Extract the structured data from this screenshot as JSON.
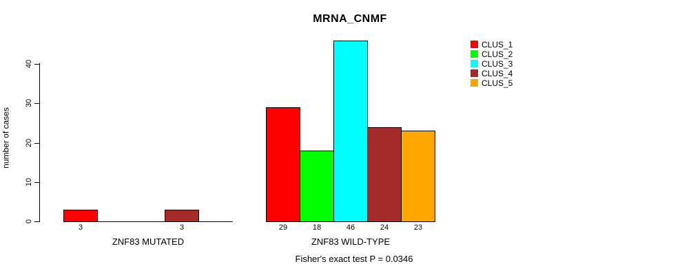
{
  "chart_data": {
    "type": "bar",
    "title": "MRNA_CNMF",
    "ylabel": "number of cases",
    "ylim": [
      0,
      40
    ],
    "yticks": [
      0,
      10,
      20,
      30,
      40
    ],
    "grid": false,
    "annotation": "Fisher's exact test P = 0.0346",
    "legend": {
      "position": "top-right",
      "entries": [
        {
          "label": "CLUS_1",
          "color": "#FF0000"
        },
        {
          "label": "CLUS_2",
          "color": "#00FF00"
        },
        {
          "label": "CLUS_3",
          "color": "#00FFFF"
        },
        {
          "label": "CLUS_4",
          "color": "#A52A2A"
        },
        {
          "label": "CLUS_5",
          "color": "#FFA500"
        }
      ]
    },
    "groups": [
      {
        "label": "ZNF83 MUTATED",
        "series": [
          {
            "name": "CLUS_1",
            "value": 3
          },
          {
            "name": "CLUS_2",
            "value": 0
          },
          {
            "name": "CLUS_3",
            "value": 0
          },
          {
            "name": "CLUS_4",
            "value": 3
          },
          {
            "name": "CLUS_5",
            "value": 0
          }
        ]
      },
      {
        "label": "ZNF83 WILD-TYPE",
        "series": [
          {
            "name": "CLUS_1",
            "value": 29
          },
          {
            "name": "CLUS_2",
            "value": 18
          },
          {
            "name": "CLUS_3",
            "value": 46
          },
          {
            "name": "CLUS_4",
            "value": 24
          },
          {
            "name": "CLUS_5",
            "value": 23
          }
        ]
      }
    ]
  }
}
